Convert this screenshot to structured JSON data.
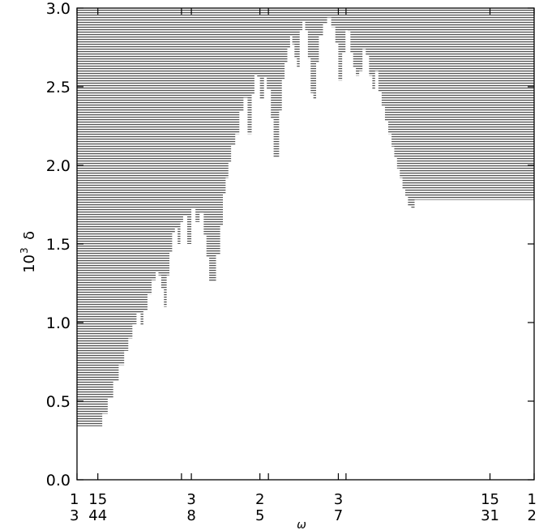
{
  "chart_data": {
    "type": "area",
    "title": "",
    "xlabel": "ω",
    "ylabel_base": "10",
    "ylabel_exp": "3",
    "ylabel_symbol": "δ",
    "xlim": [
      0.3333,
      0.5
    ],
    "ylim": [
      0,
      3.0
    ],
    "yticks": [
      "0.0",
      "0.5",
      "1.0",
      "1.5",
      "2.0",
      "2.5",
      "3.0"
    ],
    "ytick_values": [
      0,
      0.5,
      1.0,
      1.5,
      2.0,
      2.5,
      3.0
    ],
    "xticks": [
      {
        "value": 0.3333,
        "num": "1",
        "den": "3"
      },
      {
        "value": 0.3409,
        "num": "15",
        "den": "44"
      },
      {
        "value": 0.375,
        "num": "3",
        "den": "8"
      },
      {
        "value": 0.4,
        "num": "2",
        "den": "5"
      },
      {
        "value": 0.4286,
        "num": "3",
        "den": "7"
      },
      {
        "value": 0.4839,
        "num": "15",
        "den": "31"
      },
      {
        "value": 0.5,
        "num": "1",
        "den": "2"
      }
    ],
    "extra_tick_values": [
      0.3714,
      0.4031,
      0.4314
    ],
    "fill": "horizontal gray hatching above boundary",
    "hatch_color": "#555555",
    "boundary": {
      "x": [
        0.3333,
        0.3409,
        0.3425,
        0.3445,
        0.3465,
        0.3485,
        0.3505,
        0.352,
        0.3535,
        0.355,
        0.3565,
        0.3575,
        0.359,
        0.3605,
        0.362,
        0.363,
        0.364,
        0.365,
        0.366,
        0.367,
        0.368,
        0.369,
        0.37,
        0.371,
        0.372,
        0.3735,
        0.375,
        0.3765,
        0.378,
        0.3795,
        0.3805,
        0.3815,
        0.3825,
        0.384,
        0.3855,
        0.3865,
        0.3875,
        0.3885,
        0.3895,
        0.391,
        0.3925,
        0.394,
        0.3955,
        0.397,
        0.398,
        0.399,
        0.4,
        0.4015,
        0.4025,
        0.404,
        0.405,
        0.406,
        0.407,
        0.408,
        0.409,
        0.41,
        0.411,
        0.4118,
        0.4126,
        0.4135,
        0.4145,
        0.4155,
        0.4165,
        0.4175,
        0.4185,
        0.4195,
        0.4205,
        0.4215,
        0.423,
        0.4245,
        0.426,
        0.4275,
        0.4286,
        0.43,
        0.4312,
        0.432,
        0.433,
        0.434,
        0.435,
        0.4362,
        0.4374,
        0.4386,
        0.4398,
        0.441,
        0.442,
        0.4432,
        0.4444,
        0.4456,
        0.4468,
        0.448,
        0.449,
        0.45,
        0.451,
        0.452,
        0.453,
        0.454,
        0.4552,
        0.4564,
        0.4576,
        0.4588,
        0.46,
        0.4615,
        0.463,
        0.4645,
        0.466,
        0.4675,
        0.469,
        0.4705,
        0.472,
        0.4735,
        0.475,
        0.4765,
        0.478,
        0.4795,
        0.481,
        0.4825,
        0.4839,
        0.4845,
        0.4855,
        0.5
      ],
      "y": [
        0.34,
        0.34,
        0.42,
        0.52,
        0.63,
        0.73,
        0.82,
        0.9,
        0.99,
        1.06,
        0.98,
        1.08,
        1.18,
        1.27,
        1.32,
        1.3,
        1.22,
        1.1,
        1.3,
        1.45,
        1.57,
        1.6,
        1.5,
        1.64,
        1.68,
        1.5,
        1.73,
        1.64,
        1.7,
        1.56,
        1.42,
        1.26,
        1.26,
        1.43,
        1.62,
        1.82,
        1.92,
        2.02,
        2.13,
        2.2,
        2.34,
        2.43,
        2.2,
        2.45,
        2.58,
        2.56,
        2.42,
        2.56,
        2.48,
        2.3,
        2.05,
        2.05,
        2.35,
        2.55,
        2.65,
        2.75,
        2.82,
        2.77,
        2.68,
        2.62,
        2.86,
        2.92,
        2.86,
        2.68,
        2.46,
        2.42,
        2.65,
        2.82,
        2.9,
        2.94,
        2.88,
        2.78,
        2.54,
        2.72,
        2.86,
        2.85,
        2.72,
        2.62,
        2.57,
        2.6,
        2.74,
        2.7,
        2.57,
        2.48,
        2.6,
        2.47,
        2.38,
        2.28,
        2.2,
        2.12,
        2.05,
        1.98,
        1.92,
        1.85,
        1.8,
        1.74,
        1.73,
        1.78,
        1.78,
        1.78,
        1.78,
        1.78,
        1.78,
        1.78,
        1.78,
        1.78,
        1.78,
        1.78,
        1.78,
        1.78,
        1.78,
        1.78,
        1.78,
        1.78,
        1.78,
        1.78,
        1.78,
        1.78,
        1.78,
        1.78
      ]
    }
  }
}
